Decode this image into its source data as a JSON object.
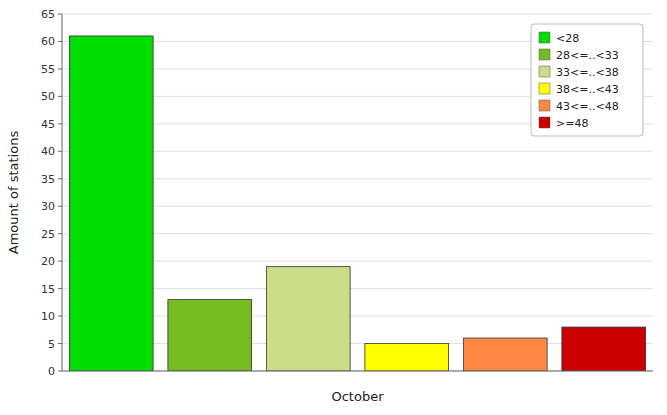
{
  "chart_data": {
    "type": "bar",
    "xlabel": "October",
    "ylabel": "Amount of stations",
    "categories": [
      "<28",
      "28<=..<33",
      "33<=..<38",
      "38<=..<43",
      "43<=..<48",
      ">=48"
    ],
    "values": [
      61,
      13,
      19,
      5,
      6,
      8
    ],
    "colors": [
      "#00DD00",
      "#77BB22",
      "#CCDD88",
      "#FFFF00",
      "#FF8844",
      "#CC0000"
    ],
    "ylim": [
      0,
      65
    ],
    "yticks": [
      0,
      5,
      10,
      15,
      20,
      25,
      30,
      35,
      40,
      45,
      50,
      55,
      60,
      65
    ],
    "grid": true,
    "legend": "upper right",
    "tick_labels": "y"
  }
}
